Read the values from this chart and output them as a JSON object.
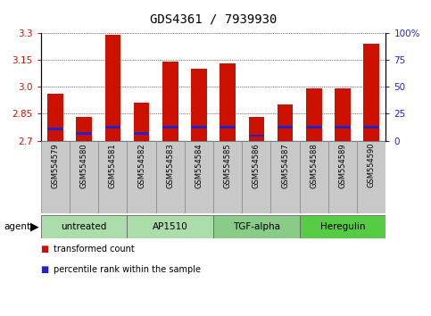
{
  "title": "GDS4361 / 7939930",
  "samples": [
    "GSM554579",
    "GSM554580",
    "GSM554581",
    "GSM554582",
    "GSM554583",
    "GSM554584",
    "GSM554585",
    "GSM554586",
    "GSM554587",
    "GSM554588",
    "GSM554589",
    "GSM554590"
  ],
  "red_values": [
    2.96,
    2.83,
    3.29,
    2.91,
    3.14,
    3.1,
    3.13,
    2.83,
    2.9,
    2.99,
    2.99,
    3.24
  ],
  "blue_pct": [
    9.5,
    5.5,
    11.5,
    5.5,
    11.5,
    11.5,
    11.5,
    3.5,
    11.5,
    11.5,
    11.5,
    11.5
  ],
  "ymin": 2.7,
  "ymax": 3.3,
  "y_ticks_left": [
    2.7,
    2.85,
    3.0,
    3.15,
    3.3
  ],
  "y_ticks_right_pct": [
    0,
    25,
    50,
    75,
    100
  ],
  "y_right_labels": [
    "0",
    "25",
    "50",
    "75",
    "100%"
  ],
  "bar_color_red": "#CC1100",
  "bar_color_blue": "#2222CC",
  "groups": [
    {
      "label": "untreated",
      "start": 0,
      "end": 3,
      "color": "#AADDAA"
    },
    {
      "label": "AP1510",
      "start": 3,
      "end": 6,
      "color": "#AADDAA"
    },
    {
      "label": "TGF-alpha",
      "start": 6,
      "end": 9,
      "color": "#88CC88"
    },
    {
      "label": "Heregulin",
      "start": 9,
      "end": 12,
      "color": "#55CC44"
    }
  ],
  "legend_red": "transformed count",
  "legend_blue": "percentile rank within the sample",
  "bar_width": 0.55,
  "title_fontsize": 10,
  "tick_fontsize": 7.5,
  "tick_color_left": "#CC1100",
  "tick_color_right": "#2222CC",
  "bg_label": "#C8C8C8"
}
